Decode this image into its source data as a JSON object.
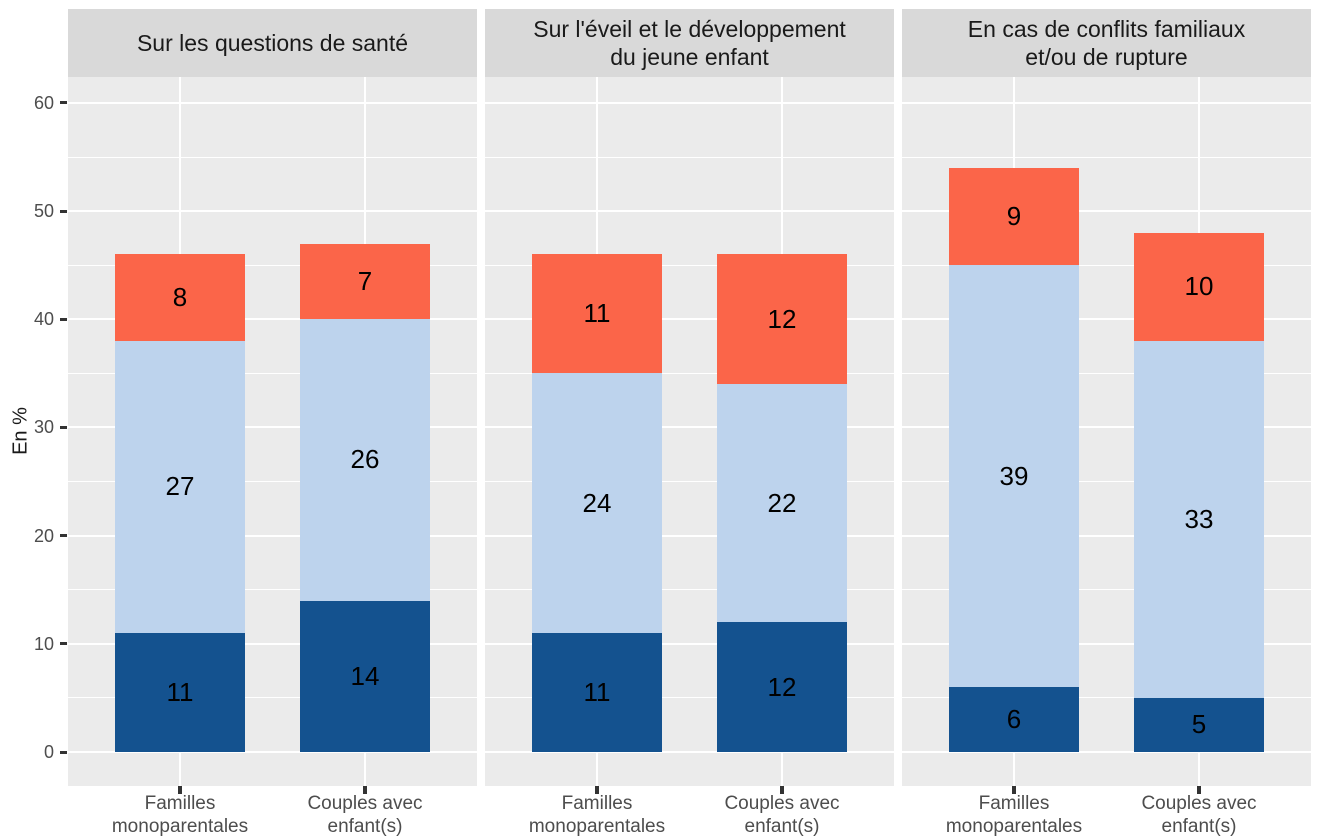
{
  "chart_data": {
    "type": "bar",
    "stacked": true,
    "ylabel": "En %",
    "ylim": [
      0,
      62
    ],
    "yticks": [
      0,
      10,
      20,
      30,
      40,
      50,
      60
    ],
    "yminorticks": [
      5,
      15,
      25,
      35,
      45,
      55
    ],
    "legend_position": "none",
    "grid": "white major and minor horizontal lines, white vertical line at each bar center, on grey panel",
    "panel_background": "#EBEBEB",
    "strip_background": "#D9D9D9",
    "gridline_color": "#FFFFFF",
    "segment_names": [
      "dark-blue-bottom",
      "light-blue-middle",
      "orange-top"
    ],
    "segment_colors": [
      "#14528F",
      "#BDD3ED",
      "#FB6549"
    ],
    "categories": [
      "Familles monoparentales",
      "Couples avec enfant(s)"
    ],
    "x_tick_label_lines": [
      [
        "Familles",
        "monoparentales"
      ],
      [
        "Couples avec",
        "enfant(s)"
      ]
    ],
    "panels": [
      {
        "title": "Sur les questions de santé",
        "title_lines": [
          "Sur les questions de santé"
        ],
        "bars": [
          {
            "category": "Familles monoparentales",
            "values": [
              11,
              27,
              8
            ]
          },
          {
            "category": "Couples avec enfant(s)",
            "values": [
              14,
              26,
              7
            ]
          }
        ]
      },
      {
        "title": "Sur l'éveil et le développement du jeune enfant",
        "title_lines": [
          "Sur l'éveil et le développement",
          "du jeune enfant"
        ],
        "bars": [
          {
            "category": "Familles monoparentales",
            "values": [
              11,
              24,
              11
            ]
          },
          {
            "category": "Couples avec enfant(s)",
            "values": [
              12,
              22,
              12
            ]
          }
        ]
      },
      {
        "title": "En cas de conflits familiaux et/ou de rupture",
        "title_lines": [
          "En cas de conflits familiaux",
          "et/ou de rupture"
        ],
        "bars": [
          {
            "category": "Familles monoparentales",
            "values": [
              6,
              39,
              9
            ]
          },
          {
            "category": "Couples avec enfant(s)",
            "values": [
              5,
              33,
              10
            ]
          }
        ]
      }
    ]
  }
}
